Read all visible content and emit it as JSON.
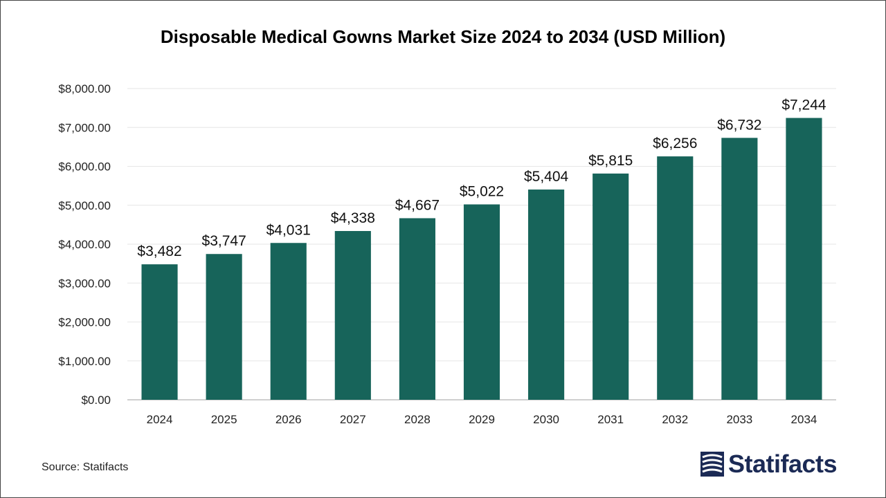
{
  "title": "Disposable Medical Gowns Market Size 2024 to 2034 (USD Million)",
  "source": "Source: Statifacts",
  "logo": {
    "text": "Statifacts",
    "color": "#1b2a55"
  },
  "chart_data": {
    "type": "bar",
    "title": "Disposable Medical Gowns Market Size 2024 to 2034 (USD Million)",
    "xlabel": "",
    "ylabel": "",
    "categories": [
      "2024",
      "2025",
      "2026",
      "2027",
      "2028",
      "2029",
      "2030",
      "2031",
      "2032",
      "2033",
      "2034"
    ],
    "values": [
      3482,
      3747,
      4031,
      4338,
      4667,
      5022,
      5404,
      5815,
      6256,
      6732,
      7244
    ],
    "data_labels": [
      "$3,482",
      "$3,747",
      "$4,031",
      "$4,338",
      "$4,667",
      "$5,022",
      "$5,404",
      "$5,815",
      "$6,256",
      "$6,732",
      "$7,244"
    ],
    "ylim": [
      0,
      8000
    ],
    "yticks": [
      0,
      1000,
      2000,
      3000,
      4000,
      5000,
      6000,
      7000,
      8000
    ],
    "ytick_labels": [
      "$0.00",
      "$1,000.00",
      "$2,000.00",
      "$3,000.00",
      "$4,000.00",
      "$5,000.00",
      "$6,000.00",
      "$7,000.00",
      "$8,000.00"
    ],
    "grid": true,
    "legend": "none",
    "bar_color": "#17645a"
  }
}
